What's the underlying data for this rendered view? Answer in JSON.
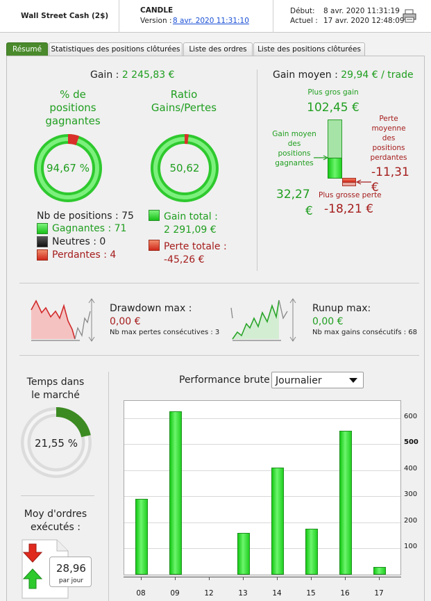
{
  "header": {
    "account": "Wall Street Cash (2$)",
    "strategy": "CANDLE",
    "version_label": "Version :",
    "version_value": "8 avr. 2020 11:31:10",
    "start_label": "Début:",
    "start_value": "8 avr. 2020 11:31:19",
    "current_label": "Actuel :",
    "current_value": "17 avr. 2020 12:48:09"
  },
  "tabs": [
    "Résumé",
    "Statistiques des positions clôturées",
    "Liste des ordres",
    "Liste des positions clôturées"
  ],
  "gain": {
    "label": "Gain :",
    "value": "2 245,83 €"
  },
  "win_pct": {
    "title_l1": "% de",
    "title_l2": "positions",
    "title_l3": "gagnantes",
    "value": "94,67 %",
    "fraction": 0.9467
  },
  "ratio": {
    "title_l1": "Ratio",
    "title_l2": "Gains/Pertes",
    "value": "50,62",
    "fraction": 0.9806
  },
  "positions": {
    "total_label": "Nb de positions : 75",
    "winners": "Gagnantes : 71",
    "neutral": "Neutres : 0",
    "losers": "Perdantes : 4"
  },
  "totals": {
    "gain_total_label": "Gain total :",
    "gain_total_value": "2 291,09 €",
    "loss_total_label": "Perte totale :",
    "loss_total_value": "-45,26 €"
  },
  "avg": {
    "title_label": "Gain moyen :",
    "title_value": "29,94 € / trade",
    "biggest_gain_label": "Plus gros gain",
    "biggest_gain_value": "102,45 €",
    "avg_win_label_l1": "Gain moyen",
    "avg_win_label_l2": "des",
    "avg_win_label_l3": "positions",
    "avg_win_label_l4": "gagnantes",
    "avg_win_value_l1": "32,27",
    "avg_win_value_l2": "€",
    "avg_loss_label_l1": "Perte",
    "avg_loss_label_l2": "moyenne",
    "avg_loss_label_l3": "des",
    "avg_loss_label_l4": "positions",
    "avg_loss_label_l5": "perdantes",
    "avg_loss_value_l1": "-11,31",
    "avg_loss_value_l2": "€",
    "biggest_loss_label": "Plus grosse perte",
    "biggest_loss_value": "-18,21 €"
  },
  "drawdown": {
    "label": "Drawdown max :",
    "value": "0,00 €",
    "sub": "Nb max pertes consécutives : 3"
  },
  "runup": {
    "label": "Runup max:",
    "value": "0,00 €",
    "sub": "Nb max gains consécutifs : 68"
  },
  "market_time": {
    "title_l1": "Temps dans",
    "title_l2": "le marché",
    "value": "21,55 %",
    "fraction": 0.2155
  },
  "orders": {
    "title_l1": "Moy d'ordres",
    "title_l2": "exécutés :",
    "value": "28,96",
    "unit": "par jour"
  },
  "perf": {
    "label": "Performance brute",
    "period": "Journalier"
  },
  "chart_data": {
    "type": "bar",
    "title": "Performance brute",
    "categories": [
      "08",
      "09",
      "12",
      "13",
      "14",
      "15",
      "16",
      "17"
    ],
    "values": [
      290,
      625,
      0,
      160,
      410,
      175,
      550,
      28
    ],
    "yticks": [
      100,
      200,
      300,
      400,
      500,
      600
    ],
    "ylim": [
      0,
      660
    ]
  },
  "colors": {
    "green": "#1f9e1f",
    "red": "#a51c1c",
    "active_tab": "#4a8a2c"
  }
}
